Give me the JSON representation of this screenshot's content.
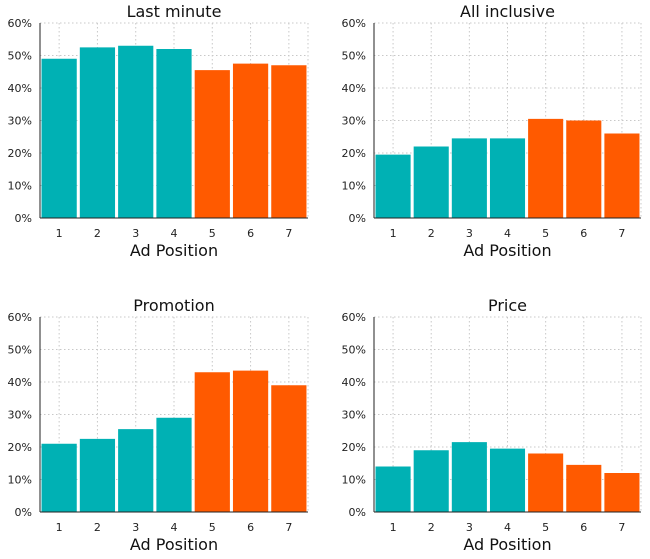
{
  "colors": {
    "teal": "#00b1b4",
    "orange": "#ff5a00"
  },
  "chart_data": [
    {
      "type": "bar",
      "title": "Last minute",
      "xlabel": "Ad Position",
      "ylabel": "",
      "categories": [
        "1",
        "2",
        "3",
        "4",
        "5",
        "6",
        "7"
      ],
      "values": [
        49,
        52.5,
        53,
        52,
        45.5,
        47.5,
        47
      ],
      "bar_colors": [
        "teal",
        "teal",
        "teal",
        "teal",
        "orange",
        "orange",
        "orange"
      ],
      "ylim": [
        0,
        60
      ],
      "yticks": [
        "0%",
        "10%",
        "20%",
        "30%",
        "40%",
        "50%",
        "60%"
      ],
      "grid": true
    },
    {
      "type": "bar",
      "title": "All inclusive",
      "xlabel": "Ad Position",
      "ylabel": "",
      "categories": [
        "1",
        "2",
        "3",
        "4",
        "5",
        "6",
        "7"
      ],
      "values": [
        19.5,
        22,
        24.5,
        24.5,
        30.5,
        30,
        26
      ],
      "bar_colors": [
        "teal",
        "teal",
        "teal",
        "teal",
        "orange",
        "orange",
        "orange"
      ],
      "ylim": [
        0,
        60
      ],
      "yticks": [
        "0%",
        "10%",
        "20%",
        "30%",
        "40%",
        "50%",
        "60%"
      ],
      "grid": true
    },
    {
      "type": "bar",
      "title": "Promotion",
      "xlabel": "Ad Position",
      "ylabel": "",
      "categories": [
        "1",
        "2",
        "3",
        "4",
        "5",
        "6",
        "7"
      ],
      "values": [
        21,
        22.5,
        25.5,
        29,
        43,
        43.5,
        39
      ],
      "bar_colors": [
        "teal",
        "teal",
        "teal",
        "teal",
        "orange",
        "orange",
        "orange"
      ],
      "ylim": [
        0,
        60
      ],
      "yticks": [
        "0%",
        "10%",
        "20%",
        "30%",
        "40%",
        "50%",
        "60%"
      ],
      "grid": true
    },
    {
      "type": "bar",
      "title": "Price",
      "xlabel": "Ad Position",
      "ylabel": "",
      "categories": [
        "1",
        "2",
        "3",
        "4",
        "5",
        "6",
        "7"
      ],
      "values": [
        14,
        19,
        21.5,
        19.5,
        18,
        14.5,
        12
      ],
      "bar_colors": [
        "teal",
        "teal",
        "teal",
        "teal",
        "orange",
        "orange",
        "orange"
      ],
      "ylim": [
        0,
        60
      ],
      "yticks": [
        "0%",
        "10%",
        "20%",
        "30%",
        "40%",
        "50%",
        "60%"
      ],
      "grid": true
    }
  ]
}
